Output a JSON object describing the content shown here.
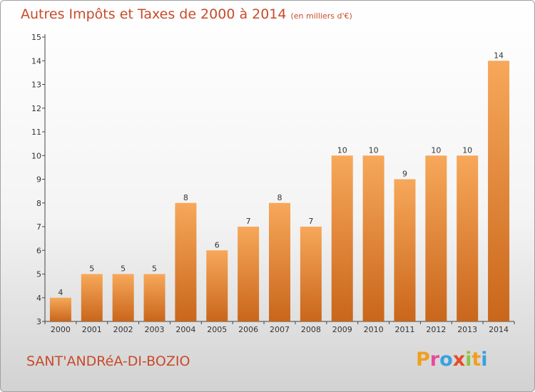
{
  "header": {
    "title": "Autres Impôts et Taxes de 2000 à 2014",
    "unit": "(en milliers d'€)"
  },
  "footer": {
    "commune": "SANT'ANDRéA-DI-BOZIO",
    "brand_letters": [
      "P",
      "r",
      "o",
      "x",
      "i",
      "t",
      "i"
    ],
    "brand_colors": [
      "#f0a020",
      "#e84a9a",
      "#3aa0e0",
      "#e84a2a",
      "#8cc63f",
      "#f0a020",
      "#3aa0e0"
    ]
  },
  "colors": {
    "bar_top": "#f7a85a",
    "bar_bottom": "#c9661b",
    "axis": "#444444"
  },
  "chart_data": {
    "type": "bar",
    "categories": [
      "2000",
      "2001",
      "2002",
      "2003",
      "2004",
      "2005",
      "2006",
      "2007",
      "2008",
      "2009",
      "2010",
      "2011",
      "2012",
      "2013",
      "2014"
    ],
    "values": [
      4,
      5,
      5,
      5,
      8,
      6,
      7,
      8,
      7,
      10,
      10,
      9,
      10,
      10,
      14
    ],
    "ylim": [
      3,
      15
    ],
    "yticks": [
      3,
      4,
      5,
      6,
      7,
      8,
      9,
      10,
      11,
      12,
      13,
      14,
      15
    ],
    "title": "Autres Impôts et Taxes de 2000 à 2014",
    "xlabel": "",
    "ylabel": "",
    "grid": false,
    "data_labels": true
  }
}
